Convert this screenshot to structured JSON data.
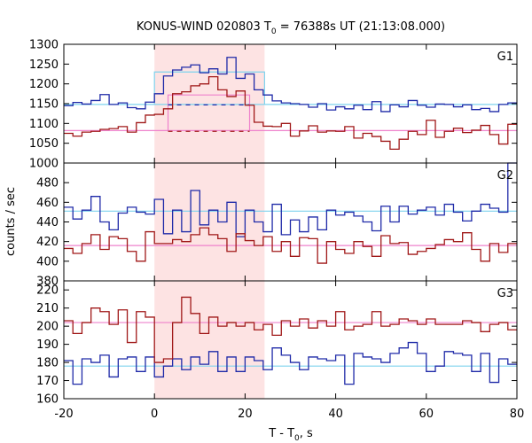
{
  "chart_data": {
    "type": "line",
    "title": "KONUS-WIND 020803 T",
    "title_sub": "0",
    "title_rest": " = 76388s UT (21:13:08.000)",
    "xlabel": "T - T",
    "xlabel_sub": "0",
    "xlabel_rest": ", s",
    "ylabel": "counts / sec",
    "xlim": [
      -20,
      80
    ],
    "x_ticks": [
      -20,
      0,
      20,
      40,
      60,
      80
    ],
    "highlight_interval": [
      0,
      24.3
    ],
    "colors": {
      "blue": "#1f2aa8",
      "red": "#a01818",
      "cyan": "#7fd3ee",
      "pink": "#ee82cc",
      "highlight": "#fde3e3"
    },
    "panels": [
      {
        "label": "G1",
        "ylim": [
          1000,
          1300
        ],
        "y_ticks": [
          1000,
          1050,
          1100,
          1150,
          1200,
          1250,
          1300
        ],
        "x_edges": [
          -20,
          -18,
          -16,
          -14,
          -12,
          -10,
          -8,
          -6,
          -4,
          -2,
          0,
          2,
          4,
          6,
          8,
          10,
          12,
          14,
          16,
          18,
          20,
          22,
          24,
          26,
          28,
          30,
          32,
          34,
          36,
          38,
          40,
          42,
          44,
          46,
          48,
          50,
          52,
          54,
          56,
          58,
          60,
          62,
          64,
          66,
          68,
          70,
          72,
          74,
          76,
          78,
          80
        ],
        "series": [
          {
            "name": "",
            "color": "blue",
            "values": [
              1145,
              1153,
              1149,
              1158,
              1173,
              1148,
              1152,
              1140,
              1137,
              1154,
              1175,
              1220,
              1235,
              1242,
              1248,
              1228,
              1238,
              1225,
              1267,
              1214,
              1225,
              1185,
              1172,
              1157,
              1152,
              1150,
              1148,
              1141,
              1150,
              1134,
              1142,
              1137,
              1146,
              1135,
              1155,
              1130,
              1147,
              1142,
              1158,
              1146,
              1141,
              1149,
              1148,
              1142,
              1147,
              1135,
              1138,
              1130,
              1148,
              1152
            ]
          },
          {
            "name": "",
            "color": "red",
            "values": [
              1075,
              1068,
              1078,
              1080,
              1085,
              1087,
              1092,
              1078,
              1102,
              1121,
              1123,
              1137,
              1175,
              1180,
              1195,
              1200,
              1218,
              1185,
              1168,
              1182,
              1146,
              1103,
              1093,
              1092,
              1100,
              1068,
              1081,
              1094,
              1078,
              1081,
              1080,
              1092,
              1063,
              1075,
              1067,
              1055,
              1035,
              1060,
              1080,
              1072,
              1108,
              1065,
              1080,
              1088,
              1077,
              1083,
              1095,
              1072,
              1048,
              1098
            ]
          }
        ],
        "reference_lines": [
          {
            "color": "cyan",
            "y": 1148,
            "x_start": -20,
            "x_end": 80,
            "dashed": false
          },
          {
            "color": "pink",
            "y": 1082,
            "x_start": -20,
            "x_end": 80,
            "dashed": false
          }
        ],
        "boxes": [
          {
            "color": "cyan",
            "x0": 0,
            "x1": 24.3,
            "y_top": 1230,
            "y_base": 1148
          },
          {
            "color": "pink",
            "x0": 3,
            "x1": 21,
            "y_top": 1172,
            "y_base": 1082
          }
        ],
        "dashed_lines": [
          {
            "color": "blue",
            "y": 1147,
            "x_start": 3,
            "x_end": 21
          },
          {
            "color": "red",
            "y": 1080,
            "x_start": 3,
            "x_end": 21
          }
        ]
      },
      {
        "label": "G2",
        "ylim": [
          380,
          500
        ],
        "y_ticks": [
          380,
          400,
          420,
          440,
          460,
          480
        ],
        "x_edges": [
          -20,
          -18,
          -16,
          -14,
          -12,
          -10,
          -8,
          -6,
          -4,
          -2,
          0,
          2,
          4,
          6,
          8,
          10,
          12,
          14,
          16,
          18,
          20,
          22,
          24,
          26,
          28,
          30,
          32,
          34,
          36,
          38,
          40,
          42,
          44,
          46,
          48,
          50,
          52,
          54,
          56,
          58,
          60,
          62,
          64,
          66,
          68,
          70,
          72,
          74,
          76,
          78,
          80
        ],
        "series": [
          {
            "name": "",
            "color": "blue",
            "values": [
              455,
              443,
              452,
              466,
              440,
              432,
              449,
              455,
              450,
              448,
              463,
              428,
              452,
              430,
              472,
              437,
              452,
              440,
              460,
              425,
              452,
              440,
              430,
              458,
              427,
              442,
              430,
              445,
              432,
              452,
              447,
              450,
              446,
              440,
              431,
              456,
              440,
              456,
              448,
              452,
              455,
              447,
              458,
              450,
              441,
              451,
              458,
              454,
              450,
              500
            ]
          },
          {
            "name": "",
            "color": "red",
            "values": [
              413,
              408,
              418,
              427,
              412,
              425,
              423,
              410,
              400,
              430,
              418,
              418,
              422,
              420,
              427,
              434,
              427,
              423,
              410,
              428,
              421,
              416,
              425,
              410,
              420,
              405,
              424,
              423,
              398,
              420,
              412,
              408,
              420,
              415,
              405,
              426,
              418,
              419,
              407,
              410,
              413,
              417,
              422,
              420,
              429,
              412,
              400,
              418,
              409,
              418
            ]
          }
        ],
        "reference_lines": [
          {
            "color": "cyan",
            "y": 451,
            "x_start": -20,
            "x_end": 80,
            "dashed": false
          },
          {
            "color": "pink",
            "y": 416,
            "x_start": -20,
            "x_end": 80,
            "dashed": false
          }
        ],
        "boxes": [],
        "dashed_lines": []
      },
      {
        "label": "G3",
        "ylim": [
          160,
          225
        ],
        "y_ticks": [
          160,
          170,
          180,
          190,
          200,
          210,
          220
        ],
        "x_edges": [
          -20,
          -18,
          -16,
          -14,
          -12,
          -10,
          -8,
          -6,
          -4,
          -2,
          0,
          2,
          4,
          6,
          8,
          10,
          12,
          14,
          16,
          18,
          20,
          22,
          24,
          26,
          28,
          30,
          32,
          34,
          36,
          38,
          40,
          42,
          44,
          46,
          48,
          50,
          52,
          54,
          56,
          58,
          60,
          62,
          64,
          66,
          68,
          70,
          72,
          74,
          76,
          78,
          80
        ],
        "series": [
          {
            "name": "",
            "color": "blue",
            "values": [
              181,
              168,
              182,
              180,
              184,
              172,
              182,
              183,
              175,
              183,
              172,
              178,
              182,
              176,
              183,
              179,
              186,
              175,
              183,
              175,
              183,
              181,
              176,
              188,
              184,
              180,
              176,
              183,
              182,
              181,
              184,
              168,
              185,
              183,
              182,
              180,
              185,
              188,
              191,
              185,
              175,
              178,
              186,
              185,
              184,
              175,
              185,
              169,
              182,
              179
            ]
          },
          {
            "name": "",
            "color": "red",
            "values": [
              203,
              196,
              202,
              210,
              208,
              201,
              209,
              191,
              208,
              205,
              180,
              182,
              202,
              216,
              207,
              196,
              205,
              200,
              202,
              200,
              202,
              198,
              201,
              195,
              203,
              200,
              204,
              199,
              203,
              200,
              208,
              198,
              200,
              201,
              208,
              200,
              201,
              204,
              203,
              201,
              204,
              201,
              201,
              201,
              203,
              202,
              197,
              201,
              202,
              198
            ]
          }
        ],
        "reference_lines": [
          {
            "color": "cyan",
            "y": 178,
            "x_start": -20,
            "x_end": 80,
            "dashed": false
          },
          {
            "color": "pink",
            "y": 202,
            "x_start": -20,
            "x_end": 80,
            "dashed": false
          }
        ],
        "boxes": [],
        "dashed_lines": []
      }
    ]
  }
}
